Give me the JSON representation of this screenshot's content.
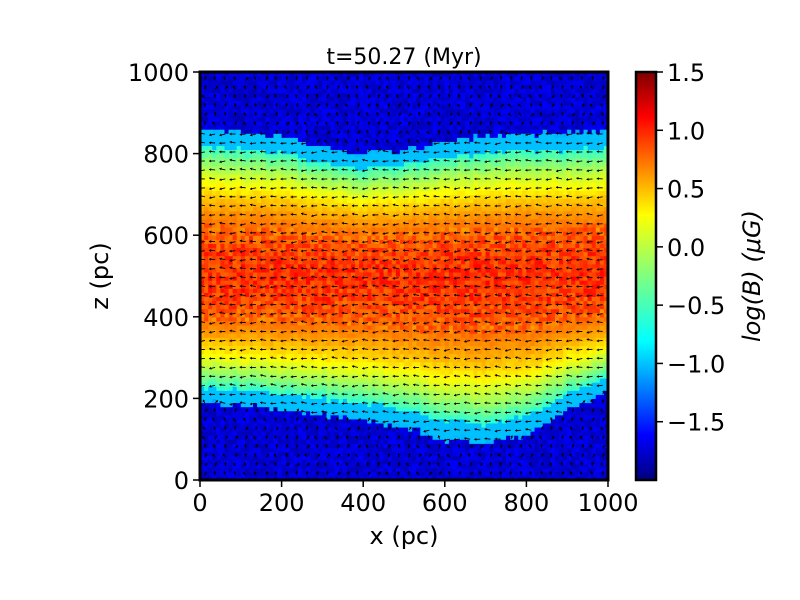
{
  "chart_data": {
    "type": "heatmap",
    "title": "t=50.27 (Myr)",
    "xlabel": "x (pc)",
    "ylabel": "z (pc)",
    "xlim": [
      0,
      1000
    ],
    "ylim": [
      0,
      1000
    ],
    "xticks": [
      "0",
      "200",
      "400",
      "600",
      "800",
      "1000"
    ],
    "yticks": [
      "0",
      "200",
      "400",
      "600",
      "800",
      "1000"
    ],
    "colorbar": {
      "label": "log(B) (μG)",
      "range": [
        -2.0,
        1.5
      ],
      "ticks": [
        "−1.5",
        "−1.0",
        "−0.5",
        "0.0",
        "0.5",
        "1.0",
        "1.5"
      ],
      "colormap": "jet"
    },
    "field_profile": {
      "midplane_z": 500,
      "peak_logB": 0.9,
      "background_logB": -1.7,
      "upper_boundary_z": [
        [
          0,
          860
        ],
        [
          100,
          855
        ],
        [
          200,
          845
        ],
        [
          300,
          820
        ],
        [
          400,
          800
        ],
        [
          500,
          810
        ],
        [
          600,
          830
        ],
        [
          700,
          845
        ],
        [
          800,
          850
        ],
        [
          900,
          850
        ],
        [
          1000,
          860
        ]
      ],
      "lower_boundary_z": [
        [
          0,
          190
        ],
        [
          100,
          185
        ],
        [
          200,
          170
        ],
        [
          300,
          160
        ],
        [
          400,
          150
        ],
        [
          500,
          130
        ],
        [
          600,
          100
        ],
        [
          700,
          90
        ],
        [
          800,
          110
        ],
        [
          900,
          170
        ],
        [
          1000,
          220
        ]
      ]
    },
    "overlay": "magnetic field direction vectors (quiver)",
    "grid": false
  }
}
